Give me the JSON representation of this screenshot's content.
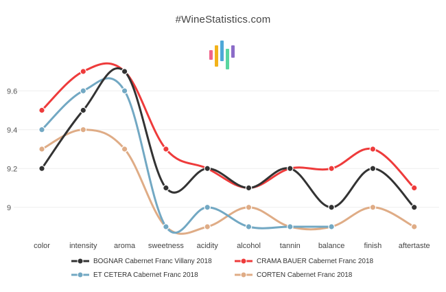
{
  "chart_data": {
    "type": "line",
    "title": "#WineStatistics.com",
    "categories": [
      "color",
      "intensity",
      "aroma",
      "sweetness",
      "acidity",
      "alcohol",
      "tannin",
      "balance",
      "finish",
      "aftertaste"
    ],
    "ylim": [
      8.87,
      9.74
    ],
    "yticks": [
      9,
      9.2,
      9.4,
      9.6
    ],
    "ytick_labels": [
      "9",
      "9.2",
      "9.4",
      "9.6"
    ],
    "grid": true,
    "legend_position": "bottom",
    "series": [
      {
        "name": "BOGNAR Cabernet Franc Villany 2018",
        "color": "#333333",
        "values": [
          9.2,
          9.5,
          9.7,
          9.1,
          9.2,
          9.1,
          9.2,
          9.0,
          9.2,
          9.0
        ]
      },
      {
        "name": "CRAMA BAUER Cabernet Franc 2018",
        "color": "#ee3b3b",
        "values": [
          9.5,
          9.7,
          9.7,
          9.3,
          9.2,
          9.1,
          9.2,
          9.2,
          9.3,
          9.1
        ]
      },
      {
        "name": "ET CETERA Cabernet Franc 2018",
        "color": "#72a8c3",
        "values": [
          9.4,
          9.6,
          9.6,
          8.9,
          9.0,
          8.9,
          8.9,
          8.9,
          null,
          null
        ]
      },
      {
        "name": "CORTEN Cabernet Franc 2018",
        "color": "#dfac86",
        "values": [
          9.3,
          9.4,
          9.3,
          8.9,
          8.9,
          9.0,
          8.9,
          8.9,
          9.0,
          8.9
        ]
      }
    ]
  },
  "logo_colors": [
    "#f0648c",
    "#f2b21a",
    "#4ea8d8",
    "#5ad6a0",
    "#8c6cc8"
  ]
}
